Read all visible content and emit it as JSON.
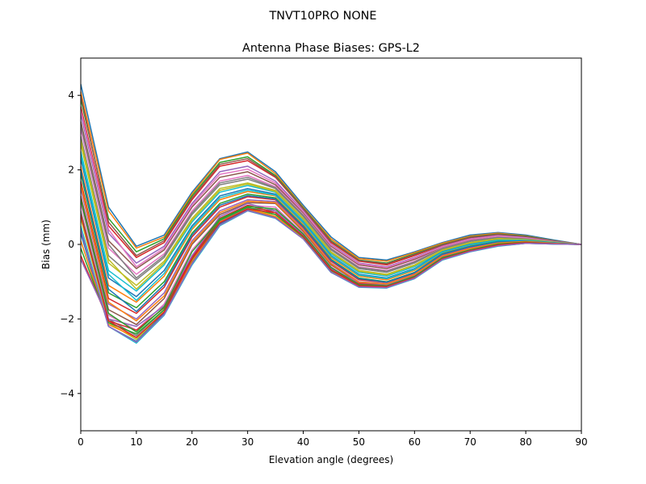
{
  "figure": {
    "suptitle": "TNVT10PRO       NONE"
  },
  "chart_data": {
    "type": "line",
    "title": "Antenna Phase Biases: GPS-L2",
    "xlabel": "Elevation angle (degrees)",
    "ylabel": "Bias (mm)",
    "xlim": [
      0,
      90
    ],
    "ylim": [
      -5,
      5
    ],
    "xticks": [
      0,
      10,
      20,
      30,
      40,
      50,
      60,
      70,
      80,
      90
    ],
    "yticks": [
      -4,
      -2,
      0,
      2,
      4
    ],
    "tick_labels_x": [
      "0",
      "10",
      "20",
      "30",
      "40",
      "50",
      "60",
      "70",
      "80",
      "90"
    ],
    "tick_labels_y": [
      "−4",
      "−2",
      "0",
      "2",
      "4"
    ],
    "grid": false,
    "legend": "none",
    "colors": [
      "#1f77b4",
      "#ff7f0e",
      "#2ca02c",
      "#d62728",
      "#9467bd",
      "#8c564b",
      "#e377c2",
      "#7f7f7f",
      "#bcbd22",
      "#17becf"
    ],
    "x": [
      0,
      5,
      10,
      15,
      20,
      25,
      30,
      35,
      40,
      45,
      50,
      55,
      60,
      65,
      70,
      75,
      80,
      85,
      90
    ],
    "series": [
      {
        "values": [
          4.3,
          1.0,
          -0.05,
          0.25,
          1.4,
          2.3,
          2.48,
          1.95,
          1.05,
          0.2,
          -0.35,
          -0.42,
          -0.2,
          0.05,
          0.25,
          0.32,
          0.25,
          0.12,
          0.0
        ]
      },
      {
        "values": [
          4.1,
          0.9,
          -0.1,
          0.2,
          1.35,
          2.28,
          2.45,
          1.9,
          1.0,
          0.15,
          -0.38,
          -0.45,
          -0.22,
          0.03,
          0.22,
          0.3,
          0.23,
          0.1,
          0.0
        ]
      },
      {
        "values": [
          3.9,
          0.7,
          -0.2,
          0.15,
          1.3,
          2.2,
          2.35,
          1.85,
          0.98,
          0.1,
          -0.42,
          -0.5,
          -0.25,
          0.0,
          0.2,
          0.28,
          0.22,
          0.1,
          0.0
        ]
      },
      {
        "values": [
          3.7,
          0.5,
          -0.35,
          0.05,
          1.2,
          2.1,
          2.25,
          1.8,
          0.95,
          0.05,
          -0.45,
          -0.55,
          -0.3,
          -0.02,
          0.18,
          0.26,
          0.2,
          0.09,
          0.0
        ]
      },
      {
        "values": [
          3.5,
          0.3,
          -0.5,
          -0.05,
          1.1,
          1.95,
          2.1,
          1.7,
          0.9,
          0.0,
          -0.5,
          -0.6,
          -0.35,
          -0.05,
          0.15,
          0.24,
          0.19,
          0.08,
          0.0
        ]
      },
      {
        "values": [
          3.3,
          0.1,
          -0.65,
          -0.15,
          1.0,
          1.8,
          1.95,
          1.6,
          0.85,
          -0.05,
          -0.55,
          -0.65,
          -0.4,
          -0.08,
          0.12,
          0.22,
          0.17,
          0.08,
          0.0
        ]
      },
      {
        "values": [
          3.1,
          -0.1,
          -0.8,
          -0.25,
          0.9,
          1.7,
          1.85,
          1.55,
          0.8,
          -0.1,
          -0.6,
          -0.7,
          -0.45,
          -0.1,
          0.1,
          0.2,
          0.16,
          0.07,
          0.0
        ]
      },
      {
        "values": [
          2.9,
          -0.3,
          -0.95,
          -0.35,
          0.8,
          1.6,
          1.75,
          1.5,
          0.75,
          -0.15,
          -0.65,
          -0.75,
          -0.5,
          -0.12,
          0.08,
          0.18,
          0.15,
          0.07,
          0.0
        ]
      },
      {
        "values": [
          2.7,
          -0.5,
          -1.1,
          -0.45,
          0.7,
          1.5,
          1.65,
          1.45,
          0.7,
          -0.2,
          -0.7,
          -0.8,
          -0.55,
          -0.15,
          0.05,
          0.16,
          0.14,
          0.06,
          0.0
        ]
      },
      {
        "values": [
          2.5,
          -0.7,
          -1.25,
          -0.55,
          0.6,
          1.4,
          1.58,
          1.4,
          0.65,
          -0.25,
          -0.75,
          -0.85,
          -0.6,
          -0.18,
          0.03,
          0.14,
          0.13,
          0.06,
          0.0
        ]
      },
      {
        "values": [
          2.3,
          -0.9,
          -1.4,
          -0.7,
          0.5,
          1.3,
          1.5,
          1.35,
          0.6,
          -0.3,
          -0.8,
          -0.9,
          -0.65,
          -0.2,
          0.0,
          0.12,
          0.12,
          0.05,
          0.0
        ]
      },
      {
        "values": [
          2.1,
          -1.1,
          -1.55,
          -0.85,
          0.4,
          1.2,
          1.42,
          1.3,
          0.55,
          -0.35,
          -0.85,
          -0.95,
          -0.7,
          -0.23,
          -0.02,
          0.1,
          0.11,
          0.05,
          0.0
        ]
      },
      {
        "values": [
          1.9,
          -1.3,
          -1.7,
          -1.0,
          0.3,
          1.1,
          1.35,
          1.25,
          0.5,
          -0.4,
          -0.9,
          -1.0,
          -0.75,
          -0.25,
          -0.05,
          0.08,
          0.1,
          0.04,
          0.0
        ]
      },
      {
        "values": [
          1.7,
          -1.45,
          -1.85,
          -1.15,
          0.2,
          1.0,
          1.28,
          1.2,
          0.45,
          -0.45,
          -0.95,
          -1.02,
          -0.78,
          -0.28,
          -0.07,
          0.06,
          0.09,
          0.04,
          0.0
        ]
      },
      {
        "values": [
          1.5,
          -1.6,
          -2.0,
          -1.3,
          0.1,
          0.9,
          1.2,
          1.15,
          0.4,
          -0.5,
          -1.0,
          -1.05,
          -0.8,
          -0.3,
          -0.1,
          0.05,
          0.08,
          0.03,
          0.0
        ]
      },
      {
        "values": [
          1.3,
          -1.75,
          -2.15,
          -1.45,
          0.0,
          0.8,
          1.12,
          1.1,
          0.35,
          -0.55,
          -1.03,
          -1.08,
          -0.82,
          -0.33,
          -0.12,
          0.03,
          0.07,
          0.03,
          0.0
        ]
      },
      {
        "values": [
          1.1,
          -1.9,
          -2.3,
          -1.6,
          -0.15,
          0.7,
          1.05,
          1.0,
          0.3,
          -0.6,
          -1.07,
          -1.1,
          -0.85,
          -0.35,
          -0.14,
          0.02,
          0.06,
          0.02,
          0.0
        ]
      },
      {
        "values": [
          0.9,
          -2.0,
          -2.45,
          -1.75,
          -0.3,
          0.62,
          0.98,
          0.9,
          0.25,
          -0.65,
          -1.1,
          -1.12,
          -0.88,
          -0.38,
          -0.16,
          0.0,
          0.05,
          0.02,
          0.0
        ]
      },
      {
        "values": [
          0.7,
          -2.1,
          -2.55,
          -1.85,
          -0.45,
          0.55,
          0.93,
          0.8,
          0.2,
          -0.7,
          -1.12,
          -1.15,
          -0.9,
          -0.4,
          -0.18,
          -0.02,
          0.04,
          0.01,
          0.0
        ]
      },
      {
        "values": [
          0.5,
          -2.2,
          -2.65,
          -1.9,
          -0.55,
          0.5,
          0.9,
          0.7,
          0.15,
          -0.75,
          -1.15,
          -1.17,
          -0.92,
          -0.42,
          -0.2,
          -0.05,
          0.03,
          0.01,
          0.0
        ]
      },
      {
        "values": [
          0.3,
          -2.2,
          -2.6,
          -1.85,
          -0.5,
          0.55,
          0.92,
          0.72,
          0.15,
          -0.75,
          -1.13,
          -1.16,
          -0.9,
          -0.4,
          -0.19,
          -0.04,
          0.03,
          0.01,
          0.0
        ]
      },
      {
        "values": [
          0.1,
          -2.15,
          -2.5,
          -1.8,
          -0.45,
          0.6,
          0.95,
          0.75,
          0.18,
          -0.72,
          -1.1,
          -1.14,
          -0.88,
          -0.38,
          -0.17,
          -0.03,
          0.04,
          0.02,
          0.0
        ]
      },
      {
        "values": [
          -0.1,
          -2.1,
          -2.4,
          -1.75,
          -0.4,
          0.65,
          1.0,
          0.8,
          0.2,
          -0.7,
          -1.08,
          -1.12,
          -0.86,
          -0.36,
          -0.15,
          -0.02,
          0.04,
          0.02,
          0.0
        ]
      },
      {
        "values": [
          -0.3,
          -2.05,
          -2.3,
          -1.7,
          -0.35,
          0.7,
          1.05,
          0.85,
          0.22,
          -0.68,
          -1.05,
          -1.1,
          -0.84,
          -0.34,
          -0.14,
          -0.01,
          0.05,
          0.02,
          0.0
        ]
      },
      {
        "values": [
          -0.4,
          -2.0,
          -2.2,
          -1.65,
          -0.3,
          0.75,
          1.1,
          0.9,
          0.25,
          -0.65,
          -1.02,
          -1.08,
          -0.82,
          -0.32,
          -0.12,
          0.0,
          0.05,
          0.02,
          0.0
        ]
      },
      {
        "values": [
          4.0,
          0.6,
          -0.3,
          0.1,
          1.25,
          2.15,
          2.3,
          1.82,
          0.96,
          0.08,
          -0.43,
          -0.52,
          -0.27,
          -0.01,
          0.19,
          0.27,
          0.21,
          0.1,
          0.0
        ]
      },
      {
        "values": [
          3.6,
          0.4,
          -0.6,
          -0.1,
          1.05,
          1.88,
          2.02,
          1.65,
          0.88,
          -0.02,
          -0.52,
          -0.62,
          -0.37,
          -0.06,
          0.14,
          0.23,
          0.18,
          0.08,
          0.0
        ]
      },
      {
        "values": [
          3.2,
          0.0,
          -0.9,
          -0.3,
          0.85,
          1.65,
          1.8,
          1.52,
          0.78,
          -0.12,
          -0.62,
          -0.72,
          -0.47,
          -0.11,
          0.09,
          0.19,
          0.15,
          0.07,
          0.0
        ]
      },
      {
        "values": [
          2.8,
          -0.4,
          -1.2,
          -0.5,
          0.65,
          1.45,
          1.62,
          1.42,
          0.68,
          -0.22,
          -0.72,
          -0.82,
          -0.57,
          -0.16,
          0.04,
          0.15,
          0.13,
          0.06,
          0.0
        ]
      },
      {
        "values": [
          2.4,
          -0.8,
          -1.5,
          -0.78,
          0.45,
          1.25,
          1.46,
          1.32,
          0.58,
          -0.32,
          -0.82,
          -0.92,
          -0.67,
          -0.21,
          -0.01,
          0.11,
          0.11,
          0.05,
          0.0
        ]
      },
      {
        "values": [
          2.0,
          -1.2,
          -1.8,
          -1.08,
          0.25,
          1.05,
          1.31,
          1.22,
          0.48,
          -0.42,
          -0.92,
          -1.01,
          -0.76,
          -0.26,
          -0.06,
          0.07,
          0.09,
          0.04,
          0.0
        ]
      },
      {
        "values": [
          1.6,
          -1.55,
          -2.05,
          -1.38,
          0.05,
          0.85,
          1.16,
          1.12,
          0.38,
          -0.52,
          -1.01,
          -1.06,
          -0.81,
          -0.31,
          -0.11,
          0.04,
          0.08,
          0.03,
          0.0
        ]
      },
      {
        "values": [
          1.2,
          -1.85,
          -2.35,
          -1.68,
          -0.2,
          0.68,
          1.02,
          0.95,
          0.28,
          -0.62,
          -1.08,
          -1.11,
          -0.86,
          -0.36,
          -0.15,
          0.01,
          0.06,
          0.02,
          0.0
        ]
      },
      {
        "values": [
          0.8,
          -2.05,
          -2.5,
          -1.82,
          -0.38,
          0.58,
          0.95,
          0.85,
          0.22,
          -0.68,
          -1.11,
          -1.13,
          -0.89,
          -0.39,
          -0.17,
          -0.01,
          0.05,
          0.02,
          0.0
        ]
      },
      {
        "values": [
          0.4,
          -2.2,
          -2.62,
          -1.88,
          -0.52,
          0.52,
          0.91,
          0.71,
          0.15,
          -0.74,
          -1.14,
          -1.16,
          -0.91,
          -0.41,
          -0.19,
          -0.04,
          0.03,
          0.01,
          0.0
        ]
      }
    ]
  }
}
